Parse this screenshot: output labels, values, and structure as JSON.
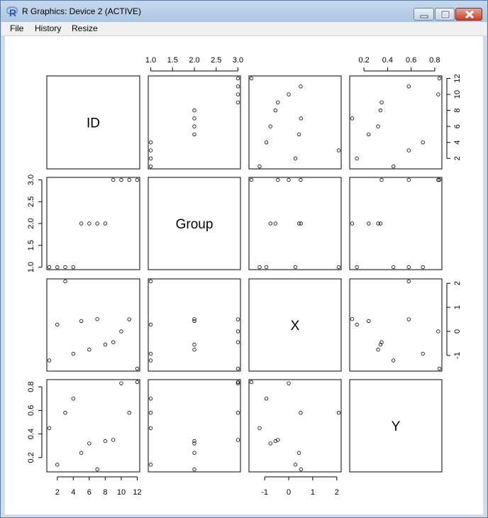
{
  "window": {
    "title": "R Graphics: Device 2 (ACTIVE)",
    "icon": "r-logo-icon",
    "controls": [
      "minimize-icon",
      "maximize-icon",
      "close-icon"
    ]
  },
  "menu": {
    "file": "File",
    "history": "History",
    "resize": "Resize"
  },
  "chart_data": {
    "type": "scatter",
    "variables": [
      "ID",
      "Group",
      "X",
      "Y"
    ],
    "data": {
      "ID": [
        1,
        2,
        3,
        4,
        5,
        6,
        7,
        8,
        9,
        10,
        11,
        12
      ],
      "Group": [
        1,
        1,
        1,
        1,
        2,
        2,
        2,
        2,
        3,
        3,
        3,
        3
      ],
      "X": [
        -1.21,
        0.28,
        2.08,
        -0.93,
        0.43,
        -0.76,
        0.51,
        -0.55,
        -0.45,
        0.0,
        0.5,
        -1.55
      ],
      "Y": [
        0.45,
        0.14,
        0.58,
        0.7,
        0.24,
        0.32,
        0.1,
        0.34,
        0.35,
        0.83,
        0.58,
        0.84
      ]
    },
    "ranges": {
      "ID": [
        1,
        12
      ],
      "Group": [
        1,
        3
      ],
      "X": [
        -1.55,
        2.08
      ],
      "Y": [
        0.1,
        0.84
      ]
    },
    "ticks": {
      "ID": [
        "2",
        "4",
        "6",
        "8",
        "10",
        "12"
      ],
      "Group": [
        "1.0",
        "1.5",
        "2.0",
        "2.5",
        "3.0"
      ],
      "X": [
        "-1",
        "0",
        "1",
        "2"
      ],
      "Y": [
        "0.2",
        "0.4",
        "0.6",
        "0.8"
      ]
    },
    "grid": false,
    "point_style": "open-circle"
  }
}
